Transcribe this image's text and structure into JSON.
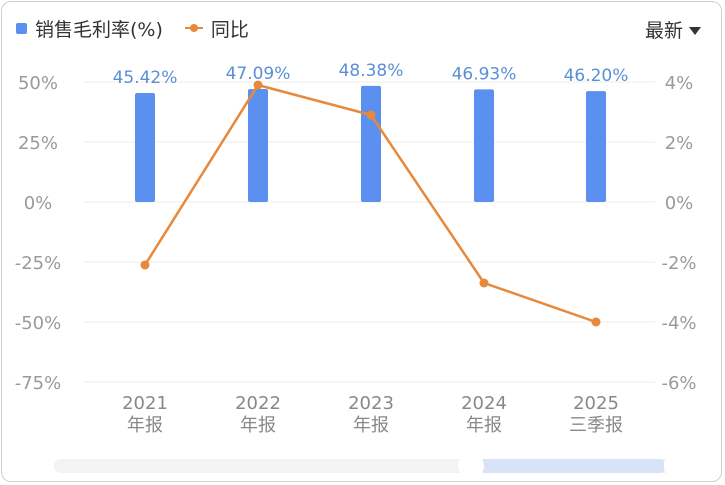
{
  "legend": {
    "bar_label": "销售毛利率(%)",
    "line_label": "同比"
  },
  "period_selector": {
    "label": "最新"
  },
  "colors": {
    "bar": "#5b8ff0",
    "line": "#e8883a",
    "bar_label": "#5a8fd8",
    "axis_text": "#9a9a9a",
    "grid": "#ececec"
  },
  "chart_data": {
    "type": "bar",
    "categories": [
      [
        "2021",
        "年报"
      ],
      [
        "2022",
        "年报"
      ],
      [
        "2023",
        "年报"
      ],
      [
        "2024",
        "年报"
      ],
      [
        "2025",
        "三季报"
      ]
    ],
    "series": [
      {
        "name": "销售毛利率(%)",
        "type": "bar",
        "axis": "left",
        "values": [
          45.42,
          47.09,
          48.38,
          46.93,
          46.2
        ],
        "labels": [
          "45.42%",
          "47.09%",
          "48.38%",
          "46.93%",
          "46.20%"
        ]
      },
      {
        "name": "同比",
        "type": "line",
        "axis": "right",
        "values": [
          -2.1,
          3.9,
          2.9,
          -2.7,
          -4.0
        ]
      }
    ],
    "y_left": {
      "ticks": [
        50,
        25,
        0,
        -25,
        -50,
        -75
      ],
      "tick_labels": [
        "50%",
        "25%",
        "0%",
        "-25%",
        "-50%",
        "-75%"
      ],
      "range": [
        -75,
        50
      ]
    },
    "y_right": {
      "ticks": [
        4,
        2,
        0,
        -2,
        -4,
        -6
      ],
      "tick_labels": [
        "4%",
        "2%",
        "0%",
        "-2%",
        "-4%",
        "-6%"
      ],
      "range": [
        -6,
        4
      ]
    },
    "grid": true
  }
}
